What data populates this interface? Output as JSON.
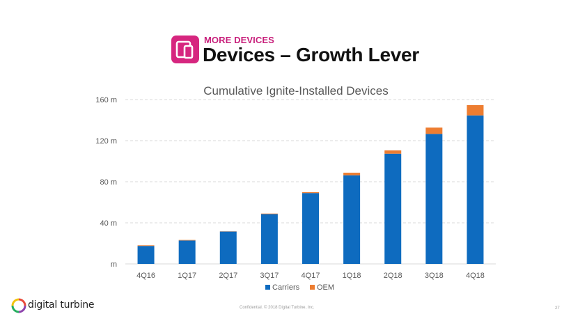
{
  "header": {
    "icon": "devices-icon",
    "kicker": "MORE DEVICES",
    "title": "Devices – Growth Lever"
  },
  "colors": {
    "accent": "#d6267f",
    "carriers": "#0e6bbf",
    "oem": "#ed7d31"
  },
  "chart_data": {
    "type": "bar",
    "stacked": true,
    "title": "Cumulative Ignite-Installed Devices",
    "xlabel": "",
    "ylabel": "",
    "categories": [
      "4Q16",
      "1Q17",
      "2Q17",
      "3Q17",
      "4Q17",
      "1Q18",
      "2Q18",
      "3Q18",
      "4Q18"
    ],
    "series": [
      {
        "name": "Carriers",
        "values": [
          17.5,
          22.8,
          31.5,
          48.5,
          69.0,
          86.3,
          107.3,
          126.6,
          144.6
        ]
      },
      {
        "name": "OEM",
        "values": [
          0.6,
          0.5,
          0.2,
          0.5,
          0.8,
          2.5,
          3.2,
          6.1,
          10.0
        ]
      }
    ],
    "ylim": [
      0,
      160
    ],
    "yticks": [
      0,
      40,
      80,
      120,
      160
    ],
    "ytick_labels": [
      "m",
      "40 m",
      "80 m",
      "120 m",
      "160 m"
    ],
    "grid": true,
    "legend": "bottom"
  },
  "footer": {
    "logo_text": "digital turbine",
    "confidential": "Confidential. © 2018 Digital Turbine, Inc.",
    "page_number": "27"
  }
}
